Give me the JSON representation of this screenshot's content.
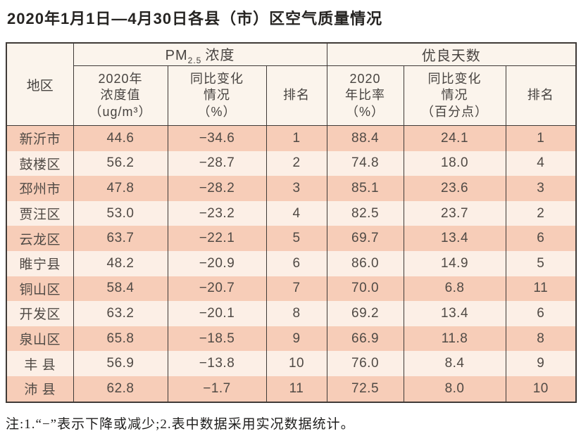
{
  "page": {
    "title": "2020年1月1日—4月30日各县（市）区空气质量情况",
    "note": "注:1.“−”表示下降或减少;2.表中数据采用实况数据统计。"
  },
  "colors": {
    "row_odd_bg": "#f7cdb8",
    "row_even_bg": "#fcefe6",
    "header_bg": "#fbf4ec",
    "border": "#3f3a37",
    "text": "#4b4540"
  },
  "table": {
    "corner_header": "地区",
    "group_pm": {
      "prefix": "PM",
      "sub": "2.5",
      "rest": "浓度"
    },
    "group_good_days": "优良天数",
    "sub_headers": [
      "2020年\n浓度值\n（ug/m³）",
      "同比变化\n情况\n（%）",
      "排名",
      "2020\n年比率\n（%）",
      "同比变化\n情况\n（百分点）",
      "排名"
    ],
    "rows": [
      {
        "cells": [
          "新沂市",
          "44.6",
          "−34.6",
          "1",
          "88.4",
          "24.1",
          "1"
        ]
      },
      {
        "cells": [
          "鼓楼区",
          "56.2",
          "−28.7",
          "2",
          "74.8",
          "18.0",
          "4"
        ]
      },
      {
        "cells": [
          "邳州市",
          "47.8",
          "−28.2",
          "3",
          "85.1",
          "23.6",
          "3"
        ]
      },
      {
        "cells": [
          "贾汪区",
          "53.0",
          "−23.2",
          "4",
          "82.5",
          "23.7",
          "2"
        ]
      },
      {
        "cells": [
          "云龙区",
          "63.7",
          "−22.1",
          "5",
          "69.7",
          "13.4",
          "6"
        ]
      },
      {
        "cells": [
          "睢宁县",
          "48.2",
          "−20.9",
          "6",
          "86.0",
          "14.9",
          "5"
        ]
      },
      {
        "cells": [
          "铜山区",
          "58.4",
          "−20.7",
          "7",
          "70.0",
          "6.8",
          "11"
        ]
      },
      {
        "cells": [
          "开发区",
          "63.2",
          "−20.1",
          "8",
          "69.2",
          "13.4",
          "6"
        ]
      },
      {
        "cells": [
          "泉山区",
          "65.8",
          "−18.5",
          "9",
          "66.9",
          "11.8",
          "8"
        ]
      },
      {
        "cells": [
          "丰 县",
          "56.9",
          "−13.8",
          "10",
          "76.0",
          "8.4",
          "9"
        ]
      },
      {
        "cells": [
          "沛 县",
          "62.8",
          "−1.7",
          "11",
          "72.5",
          "8.0",
          "10"
        ]
      }
    ]
  }
}
